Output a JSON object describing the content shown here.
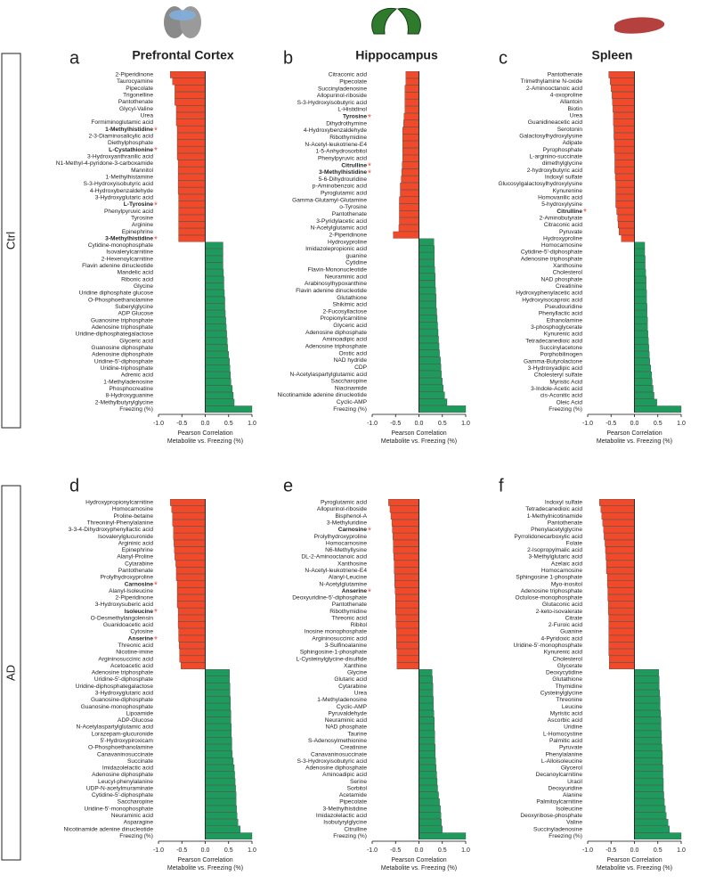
{
  "row_labels": [
    "Ctrl",
    "AD"
  ],
  "significance_marker": "*",
  "chart_data": [
    {
      "type": "bar",
      "orientation": "horizontal",
      "letter": "a",
      "title": "Prefrontal Cortex",
      "x_label": [
        "Pearson Correlation",
        "Metabolite vs. Freezing (%)"
      ],
      "xlim": [
        -1,
        1
      ],
      "xticks": [
        {
          "value": -1,
          "label": "-1.0"
        },
        -0.5,
        {
          "value": 0,
          "label": "0.0"
        },
        0.5,
        {
          "value": 1,
          "label": "1.0"
        }
      ],
      "negative_color": "#f04a2a",
      "positive_color": "#1e9a5c",
      "significant": [
        8,
        11,
        19,
        24
      ],
      "categories": [
        "2-Piperidinone",
        "Taurocyamine",
        "Pipecolate",
        "Trigonelline",
        "Pantothenate",
        "Glycyl-Valine",
        "Urea",
        "Formiminoglutamic acid",
        "1-Methylhistidine",
        "2-3-Diaminosalicylic acid",
        "Diethylphosphate",
        "L-Cystathionine",
        "3-Hydroxyanthranilic acid",
        "N1-Methyl-4-pyridone-3-carboxamide",
        "Mannitol",
        "1-Methylhistamine",
        "S-3-Hydroxyisobutyric acid",
        "4-Hydroxybenzaldehyde",
        "3-Hydroxyglutaric acid",
        "L-Tyrosine",
        "Phenylpyruvic acid",
        "Tyrosine",
        "Arginine",
        "Epinephrine",
        "3-Methylhistidine",
        "Cytidine-monophosphate",
        "Isovalerylcarnitine",
        "2-Hexenoylcarnitine",
        "Flavin adenine dinucleotide",
        "Mandelic acid",
        "Ribonic acid",
        "Glycine",
        "Uridine diphosphate glucose",
        "O-Phosphoethanolamine",
        "Suberylglycine",
        "ADP Glucose",
        "Guanosine triphosphate",
        "Adenosine triphosphate",
        "Uridine-diphosphategalactose",
        "Glyceric acid",
        "Guanosine diphosphate",
        "Adenosine diphosphate",
        "Uridine-5'-diphosphate",
        "Uridine-triphosphate",
        "Adrenic acid",
        "1-Methyladenosine",
        "Phosphocreatine",
        "8-Hydroxyguanine",
        "2-Methylbutyrylglycine",
        "Freezing (%)"
      ],
      "values": [
        -0.75,
        -0.7,
        -0.65,
        -0.65,
        -0.65,
        -0.62,
        -0.62,
        -0.62,
        -0.6,
        -0.6,
        -0.6,
        -0.6,
        -0.6,
        -0.58,
        -0.58,
        -0.58,
        -0.58,
        -0.58,
        -0.57,
        -0.57,
        -0.57,
        -0.57,
        -0.57,
        -0.57,
        -0.57,
        0.38,
        0.38,
        0.38,
        0.38,
        0.39,
        0.4,
        0.4,
        0.41,
        0.42,
        0.42,
        0.43,
        0.44,
        0.45,
        0.46,
        0.47,
        0.48,
        0.5,
        0.52,
        0.53,
        0.54,
        0.55,
        0.58,
        0.6,
        0.62,
        1.0
      ]
    },
    {
      "type": "bar",
      "orientation": "horizontal",
      "letter": "b",
      "title": "Hippocampus",
      "x_label": [
        "Pearson Correlation",
        "Metabolite vs. Freezing (%)"
      ],
      "xlim": [
        -1,
        1
      ],
      "xticks": [
        {
          "value": -1,
          "label": "-1.0"
        },
        -0.5,
        {
          "value": 0,
          "label": "0.0"
        },
        0.5,
        {
          "value": 1,
          "label": "1.0"
        }
      ],
      "negative_color": "#f04a2a",
      "positive_color": "#1e9a5c",
      "significant": [
        6,
        13,
        14
      ],
      "categories": [
        "Citraconic acid",
        "Pipecolate",
        "Succinyladenosine",
        "Allopurinol-riboside",
        "S-3-Hydroxyisobutyric acid",
        "L-Histidinol",
        "Tyrosine",
        "Dihydrothymine",
        "4-Hydroxybenzaldehyde",
        "Ribothymidine",
        "N-Acetyl-leukotriene-E4",
        "1-5-Anhydrosorbitol",
        "Phenylpyruvic acid",
        "Citrulline",
        "3-Methylhistidine",
        "5-6-Dihydrouridine",
        "p-Aminobenzoic acid",
        "Pyroglutamic acid",
        "Gamma-Glutamyl-Glutamine",
        "o-Tyrosine",
        "Pantothenate",
        "3-Pyridylacetic acid",
        "N-Acetylglutamic acid",
        "2-Piperidinone",
        "Hydroxyproline",
        "Imidazolepropionic acid",
        "guanine",
        "Cytidine",
        "Flavin-Mononucleotide",
        "Neuraminic acid",
        "Arabinosylhypoxanthine",
        "Flavin adenine dinucleotide",
        "Glutathione",
        "Shikimic acid",
        "2-Fucosyllactose",
        "Propionylcarnitine",
        "Glyceric acid",
        "Adenosine diphosphate",
        "Aminoadipic acid",
        "Adenosine triphosphate",
        "Orotic acid",
        "NAD hydride",
        "CDP",
        "N-Acetylaspartylglutamic acid",
        "Saccharopine",
        "Niacinamide",
        "Nicotinamide adenine dinucleotide",
        "Cyclic-AMP",
        "Freezing (%)"
      ],
      "values": [
        -0.28,
        -0.28,
        -0.3,
        -0.3,
        -0.3,
        -0.3,
        -0.32,
        -0.33,
        -0.35,
        -0.35,
        -0.35,
        -0.35,
        -0.35,
        -0.36,
        -0.37,
        -0.38,
        -0.4,
        -0.4,
        -0.42,
        -0.42,
        -0.42,
        -0.42,
        -0.43,
        -0.55,
        0.32,
        0.33,
        0.33,
        0.33,
        0.34,
        0.35,
        0.35,
        0.36,
        0.37,
        0.37,
        0.38,
        0.39,
        0.4,
        0.41,
        0.42,
        0.43,
        0.44,
        0.46,
        0.47,
        0.48,
        0.5,
        0.52,
        0.55,
        0.6,
        1.0
      ]
    },
    {
      "type": "bar",
      "orientation": "horizontal",
      "letter": "c",
      "title": "Spleen",
      "x_label": [
        "Pearson Correlation",
        "Metabolite vs. Freezing (%)"
      ],
      "xlim": [
        -1,
        1
      ],
      "xticks": [
        {
          "value": -1,
          "label": "-1.0"
        },
        -0.5,
        {
          "value": 0,
          "label": "0.0"
        },
        0.5,
        {
          "value": 1,
          "label": "1.0"
        }
      ],
      "negative_color": "#f04a2a",
      "positive_color": "#1e9a5c",
      "significant": [
        20
      ],
      "categories": [
        "Pantothenate",
        "Trimethylamine N-oxide",
        "2-Aminooctanoic acid",
        "4-oxoproline",
        "Allantoin",
        "Biotin",
        "Urea",
        "Guanidineacetic acid",
        "Serotonin",
        "Galactosylhydroxylysine",
        "Adipate",
        "Pyrophosphate",
        "L-arginino-succinate",
        "dimethylglycine",
        "2-hydroxybutyric acid",
        "Indoxyl sulfate",
        "Glucosylgalactosylhydroxylysine",
        "Kynurenine",
        "Homovanilic acid",
        "5-hydroxylysine",
        "Citrulline",
        "2-Aminobutyrate",
        "Citraconic acid",
        "Pyruvate",
        "Hydroxyproline",
        "Homocarnosine",
        "Cytidine-5'-diphosphate",
        "Adenosine triphosphate",
        "Xanthosine",
        "Cholesterol",
        "NAD phosphate",
        "Creatinine",
        "Hydroxyphenylacetic acid",
        "Hydroxyisocaproic acid",
        "Pseudouridine",
        "Phenyllactic acid",
        "Ethanolamine",
        "3-phosphoglycerate",
        "Kynurenic acid",
        "Tetradecanedioic acid",
        "Succinylacetone",
        "Porphobilinogen",
        "Gamma-Butyrolactone",
        "3-Hydroxyadipic acid",
        "Cholesteryl sulfate",
        "Myristic Acid",
        "3-Indole-Acetic acid",
        "cis-Aconitic acid",
        "Oleic Acid",
        "Freezing (%)"
      ],
      "values": [
        -0.55,
        -0.52,
        -0.5,
        -0.48,
        -0.47,
        -0.46,
        -0.45,
        -0.45,
        -0.44,
        -0.44,
        -0.43,
        -0.43,
        -0.42,
        -0.42,
        -0.42,
        -0.41,
        -0.4,
        -0.4,
        -0.4,
        -0.4,
        -0.38,
        -0.36,
        -0.35,
        -0.33,
        -0.28,
        0.22,
        0.22,
        0.23,
        0.23,
        0.24,
        0.25,
        0.25,
        0.26,
        0.26,
        0.27,
        0.27,
        0.28,
        0.28,
        0.29,
        0.3,
        0.31,
        0.32,
        0.33,
        0.35,
        0.37,
        0.38,
        0.4,
        0.42,
        0.48,
        1.0
      ]
    },
    {
      "type": "bar",
      "orientation": "horizontal",
      "letter": "d",
      "title": null,
      "x_label": [
        "Pearson Correlation",
        "Metabolite vs. Freezing (%)"
      ],
      "xlim": [
        -1,
        1
      ],
      "xticks": [
        {
          "value": -1,
          "label": "-1.0"
        },
        -0.5,
        {
          "value": 0,
          "label": "0.0"
        },
        0.5,
        {
          "value": 1,
          "label": "1.0"
        }
      ],
      "negative_color": "#f04a2a",
      "positive_color": "#1e9a5c",
      "significant": [
        12,
        16,
        20
      ],
      "categories": [
        "Hydroxypropionylcarnitine",
        "Homocarnosine",
        "Proline-betaine",
        "Threoninyl-Phenylalanine",
        "3-3-4-Dihydroxyphenyllactic acid",
        "Isovalerylglucuronide",
        "Argininic acid",
        "Epinephrine",
        "Alanyl-Proline",
        "Cytarabine",
        "Pantothenate",
        "Prolylhydroxyproline",
        "Carnosine",
        "Alanyl-Isoleucine",
        "2-Piperidinone",
        "3-Hydroxysuberic acid",
        "Isoleucine",
        "O-Desmethylangolensin",
        "Guanidoacetic acid",
        "Cytosine",
        "Anserine",
        "Threonic acid",
        "Nicotine-imine",
        "Argininosuccinic acid",
        "Acetoacetic acid",
        "Adenosine triphosphate",
        "Uridine-5'-diphosphate",
        "Uridine-diphosphategalactose",
        "3-Hydroxyglutaric acid",
        "Guanosine-diphosphate",
        "Guanosine-monophosphate",
        "Lipoamide",
        "ADP-Glucose",
        "N-Acetylaspartylglutamic acid",
        "Lorazepam-glucuronide",
        "5'-Hydroxypiroxicam",
        "O-Phosphoethanolamine",
        "Canavaninosuccinate",
        "Succinate",
        "Imidazolelactic acid",
        "Adenosine diphosphate",
        "Leucyl-phenylalanine",
        "UDP-N-acetylmuraminate",
        "Cytidine-5'-diphosphate",
        "Saccharopine",
        "Uridine-5'-monophosphate",
        "Neuraminic acid",
        "Asparagine",
        "Nicotinamide adenine dinucleotide",
        "Freezing (%)"
      ],
      "values": [
        -0.75,
        -0.72,
        -0.7,
        -0.7,
        -0.68,
        -0.68,
        -0.67,
        -0.66,
        -0.65,
        -0.63,
        -0.62,
        -0.62,
        -0.6,
        -0.6,
        -0.6,
        -0.6,
        -0.58,
        -0.58,
        -0.58,
        -0.57,
        -0.57,
        -0.56,
        -0.55,
        -0.55,
        -0.52,
        0.52,
        0.52,
        0.53,
        0.53,
        0.54,
        0.54,
        0.55,
        0.55,
        0.56,
        0.56,
        0.57,
        0.57,
        0.58,
        0.6,
        0.62,
        0.63,
        0.64,
        0.65,
        0.66,
        0.66,
        0.67,
        0.68,
        0.7,
        0.75,
        1.0
      ]
    },
    {
      "type": "bar",
      "orientation": "horizontal",
      "letter": "e",
      "title": null,
      "x_label": [
        "Pearson Correlation",
        "Metabolite vs. Freezing (%)"
      ],
      "xlim": [
        -1,
        1
      ],
      "xticks": [
        {
          "value": -1,
          "label": "-1.0"
        },
        -0.5,
        {
          "value": 0,
          "label": "0.0"
        },
        0.5,
        {
          "value": 1,
          "label": "1.0"
        }
      ],
      "negative_color": "#f04a2a",
      "positive_color": "#1e9a5c",
      "significant": [
        4,
        13
      ],
      "categories": [
        "Pyroglutamic acid",
        "Allopurinol-riboside",
        "Bisphenol-A",
        "3-Methyluridine",
        "Carnosine",
        "Prolylhydroxyproline",
        "Homocarnosine",
        "N6-Methyllysine",
        "DL-2-Aminooctanoic acid",
        "Xanthosine",
        "N-Acetyl-leukotriene-E4",
        "Alanyl-Leucine",
        "N-Acetylglutamine",
        "Anserine",
        "Deoxyuridine-5'-diphosphate",
        "Pantothenate",
        "Ribothymidine",
        "Threonic acid",
        "Ribitol",
        "Inosine monophosphate",
        "Argininosuccinic acid",
        "3-Sulfinoalanine",
        "Sphingosine-1-phosphate",
        "L-Cysteinylglycine-disulfide",
        "Xanthine",
        "Glycine",
        "Glutaric acid",
        "Cytarabine",
        "Urea",
        "1-Methyladenosine",
        "Cyclic-AMP",
        "Pyruvaldehyde",
        "Neuraminic acid",
        "NAD phosphate",
        "Taurine",
        "S-Adenosylmethionine",
        "Creatinine",
        "Canavaninosuccinate",
        "S-3-Hydroxyisobutyric acid",
        "Adenosine diphosphate",
        "Aminoadipic acid",
        "Serine",
        "Sorbitol",
        "Acetamide",
        "Pipecolate",
        "3-Methylhistidine",
        "Imidazolelactic acid",
        "Isobutyrylglycine",
        "Citrulline",
        "Freezing (%)"
      ],
      "values": [
        -0.65,
        -0.62,
        -0.6,
        -0.58,
        -0.57,
        -0.56,
        -0.55,
        -0.55,
        -0.54,
        -0.53,
        -0.53,
        -0.52,
        -0.52,
        -0.51,
        -0.5,
        -0.5,
        -0.5,
        -0.49,
        -0.49,
        -0.48,
        -0.48,
        -0.48,
        -0.47,
        -0.47,
        -0.47,
        0.28,
        0.29,
        0.3,
        0.3,
        0.31,
        0.31,
        0.32,
        0.33,
        0.33,
        0.34,
        0.34,
        0.35,
        0.35,
        0.36,
        0.37,
        0.38,
        0.39,
        0.4,
        0.42,
        0.44,
        0.46,
        0.47,
        0.48,
        0.5,
        1.0
      ]
    },
    {
      "type": "bar",
      "orientation": "horizontal",
      "letter": "f",
      "title": null,
      "x_label": [
        "Pearson Correlation",
        "Metabolite vs. Freezing (%)"
      ],
      "xlim": [
        -1,
        1
      ],
      "xticks": [
        {
          "value": -1,
          "label": "-1.0"
        },
        -0.5,
        {
          "value": 0,
          "label": "0.0"
        },
        0.5,
        {
          "value": 1,
          "label": "1.0"
        }
      ],
      "negative_color": "#f04a2a",
      "positive_color": "#1e9a5c",
      "significant": [],
      "categories": [
        "Indoxyl sulfate",
        "Tetradecanedioic acid",
        "1-Methylnicotinamide",
        "Pantothenate",
        "Phenylacetylglycine",
        "Pyrrolidonecarboxylic acid",
        "Folate",
        "2-Isopropylmalic acid",
        "3-Methylglutaric acid",
        "Azelaic acid",
        "Homocarnosine",
        "Sphingosine 1-phosphate",
        "Myo-inositol",
        "Adenosine triphosphate",
        "Octulose-monophosphate",
        "Glutaconic acid",
        "2-keto-isovalerate",
        "Citrate",
        "2-Furoic acid",
        "Guanine",
        "4-Pyridoxic acid",
        "Uridine-5'-monophosphate",
        "Kynurenic acid",
        "Cholesterol",
        "Glycerate",
        "Deoxycytidine",
        "Glutathione",
        "Thymidine",
        "Cysteinylglycine",
        "Threonine",
        "Leucine",
        "Myristic acid",
        "Ascorbic acid",
        "Uridine",
        "L-Homocystine",
        "Palmitic acid",
        "Pyruvate",
        "Phenylalanine",
        "L-Alloisoleucine",
        "Glycerol",
        "Decanoylcarnitine",
        "Uracil",
        "Deoxyuridine",
        "Alanine",
        "Palmitoylcarnitine",
        "Isoleucine",
        "Deoxyribose-phosphate",
        "Valine",
        "Succinyladenosine",
        "Freezing (%)"
      ],
      "values": [
        -0.75,
        -0.72,
        -0.7,
        -0.68,
        -0.66,
        -0.65,
        -0.63,
        -0.62,
        -0.61,
        -0.6,
        -0.6,
        -0.58,
        -0.58,
        -0.57,
        -0.57,
        -0.56,
        -0.56,
        -0.55,
        -0.55,
        -0.55,
        -0.55,
        -0.55,
        -0.55,
        -0.54,
        -0.54,
        0.52,
        0.53,
        0.53,
        0.54,
        0.55,
        0.55,
        0.56,
        0.57,
        0.57,
        0.58,
        0.58,
        0.59,
        0.6,
        0.6,
        0.61,
        0.61,
        0.62,
        0.62,
        0.63,
        0.64,
        0.66,
        0.68,
        0.72,
        0.75,
        1.0
      ]
    }
  ]
}
